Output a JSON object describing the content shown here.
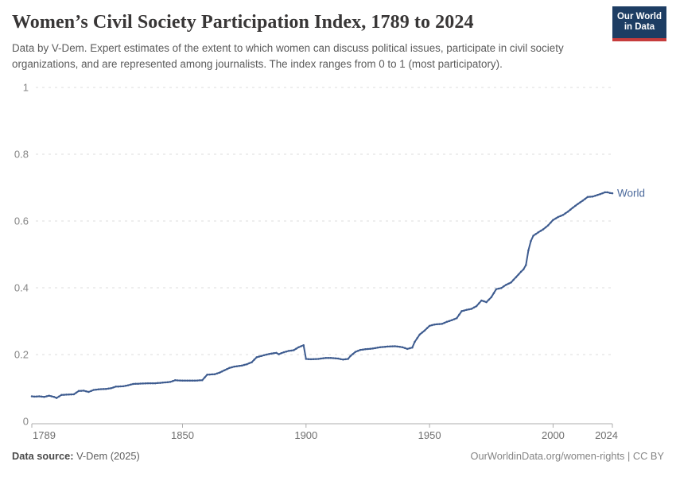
{
  "header": {
    "title": "Women’s Civil Society Participation Index, 1789 to 2024",
    "logo": {
      "line1": "Our World",
      "line2": "in Data"
    },
    "subtitle": "Data by V-Dem. Expert estimates of the extent to which women can discuss political issues, participate in civil society organizations, and are represented among journalists. The index ranges from 0 to 1 (most participatory)."
  },
  "footer": {
    "source_label": "Data source:",
    "source_value": " V-Dem (2025)",
    "credit": "OurWorldinData.org/women-rights | CC BY"
  },
  "colors": {
    "line": "#3d5b8f",
    "entity_label": "#4c6a9c",
    "grid": "#dcdcdc",
    "axis": "#adadad",
    "y_tick_text": "#858585",
    "x_tick_text": "#6f6f6f",
    "logo_bg": "#1d3d63",
    "logo_red": "#c63c3c"
  },
  "chart_data": {
    "type": "line",
    "title": "Women’s Civil Society Participation Index, 1789 to 2024",
    "xlabel": "",
    "ylabel": "",
    "xlim": [
      1789,
      2024
    ],
    "ylim": [
      0,
      1
    ],
    "grid": "horizontal-dashed",
    "legend_position": "end-of-line",
    "xticks": [
      1789,
      1850,
      1900,
      1950,
      2000,
      2024
    ],
    "yticks": [
      0,
      0.2,
      0.4,
      0.6,
      0.8,
      1
    ],
    "ytick_labels": [
      "0",
      "0.2",
      "0.4",
      "0.6",
      "0.8",
      "1"
    ],
    "series": [
      {
        "name": "World",
        "x": [
          1789,
          1790,
          1792,
          1794,
          1796,
          1798,
          1799,
          1801,
          1803,
          1806,
          1808,
          1810,
          1812,
          1814,
          1816,
          1819,
          1821,
          1823,
          1826,
          1828,
          1830,
          1833,
          1836,
          1839,
          1842,
          1845,
          1847,
          1850,
          1854,
          1858,
          1860,
          1863,
          1865,
          1867,
          1869,
          1871,
          1874,
          1876,
          1878,
          1880,
          1882,
          1884,
          1886,
          1888,
          1889,
          1891,
          1893,
          1895,
          1897,
          1899,
          1900,
          1902,
          1905,
          1908,
          1910,
          1913,
          1915,
          1917,
          1918,
          1920,
          1922,
          1924,
          1927,
          1930,
          1933,
          1936,
          1939,
          1941,
          1943,
          1944,
          1946,
          1948,
          1950,
          1952,
          1955,
          1957,
          1959,
          1961,
          1963,
          1965,
          1967,
          1969,
          1971,
          1973,
          1975,
          1977,
          1979,
          1981,
          1983,
          1985,
          1987,
          1988,
          1989,
          1990,
          1991,
          1992,
          1994,
          1996,
          1998,
          2000,
          2002,
          2004,
          2006,
          2008,
          2010,
          2012,
          2014,
          2016,
          2018,
          2020,
          2021,
          2022,
          2023,
          2024
        ],
        "values": [
          0.075,
          0.074,
          0.075,
          0.073,
          0.077,
          0.073,
          0.07,
          0.079,
          0.08,
          0.081,
          0.091,
          0.092,
          0.088,
          0.094,
          0.096,
          0.097,
          0.099,
          0.104,
          0.105,
          0.108,
          0.112,
          0.113,
          0.114,
          0.114,
          0.116,
          0.118,
          0.123,
          0.122,
          0.122,
          0.123,
          0.14,
          0.141,
          0.146,
          0.153,
          0.16,
          0.164,
          0.167,
          0.171,
          0.177,
          0.192,
          0.196,
          0.2,
          0.203,
          0.205,
          0.201,
          0.207,
          0.211,
          0.213,
          0.222,
          0.228,
          0.187,
          0.186,
          0.187,
          0.19,
          0.19,
          0.188,
          0.185,
          0.187,
          0.196,
          0.208,
          0.214,
          0.216,
          0.218,
          0.222,
          0.224,
          0.225,
          0.222,
          0.217,
          0.221,
          0.238,
          0.26,
          0.272,
          0.286,
          0.29,
          0.292,
          0.298,
          0.303,
          0.309,
          0.33,
          0.334,
          0.337,
          0.345,
          0.362,
          0.357,
          0.372,
          0.396,
          0.399,
          0.409,
          0.416,
          0.432,
          0.448,
          0.455,
          0.468,
          0.512,
          0.54,
          0.556,
          0.566,
          0.575,
          0.587,
          0.603,
          0.612,
          0.618,
          0.628,
          0.64,
          0.651,
          0.661,
          0.672,
          0.673,
          0.678,
          0.683,
          0.686,
          0.686,
          0.684,
          0.683
        ]
      }
    ]
  }
}
